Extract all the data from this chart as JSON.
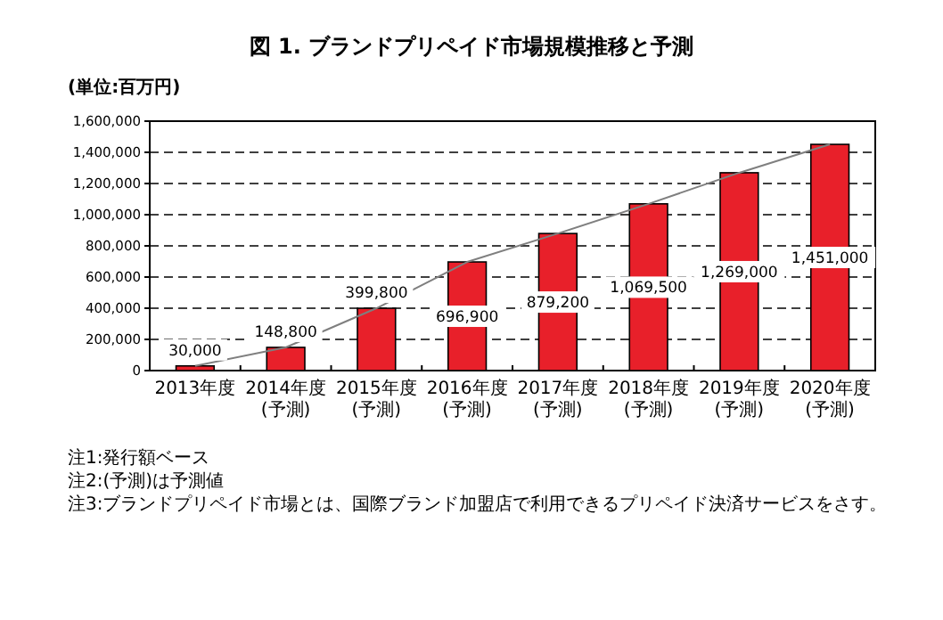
{
  "chart_data": {
    "type": "bar",
    "title": "図 1. ブランドプリペイド市場規模推移と予測",
    "ylabel": "(単位:百万円)",
    "categories": [
      "2013年度",
      "2014年度(予測)",
      "2015年度(予測)",
      "2016年度(予測)",
      "2017年度(予測)",
      "2018年度(予測)",
      "2019年度(予測)",
      "2020年度(予測)"
    ],
    "series": [
      {
        "color": "#e8202a",
        "values": [
          30000,
          148800,
          399800,
          696900,
          879200,
          1069500,
          1269000,
          1451000
        ],
        "value_labels": [
          "30,000",
          "148,800",
          "399,800",
          "696,900",
          "879,200",
          "1,069,500",
          "1,269,000",
          "1,451,000"
        ]
      },
      {
        "type": "line",
        "color": "#7f7f7f",
        "values": [
          30000,
          148800,
          399800,
          696900,
          879200,
          1069500,
          1269000,
          1451000
        ]
      }
    ],
    "ylim": [
      0,
      1600000
    ],
    "yticks": [
      0,
      {
        "value": 200000,
        "label": "200,000"
      },
      {
        "value": 400000,
        "label": "400,000"
      },
      {
        "value": 600000,
        "label": "600,000"
      },
      {
        "value": 800000,
        "label": "800,000"
      },
      {
        "value": 1000000,
        "label": "1,000,000"
      },
      {
        "value": 1200000,
        "label": "1,200,000"
      },
      {
        "value": 1400000,
        "label": "1,400,000"
      },
      {
        "value": 1600000,
        "label": "1,600,000"
      }
    ],
    "grid": "y",
    "line_style": "solid",
    "marker": "none",
    "annotations": [
      "注1:発行額ベース",
      "注2:(予測)は予測値",
      "注3:ブランドプリペイド市場とは、国際ブランド加盟店で利用できるプリペイド決済サービスをさす。"
    ]
  }
}
